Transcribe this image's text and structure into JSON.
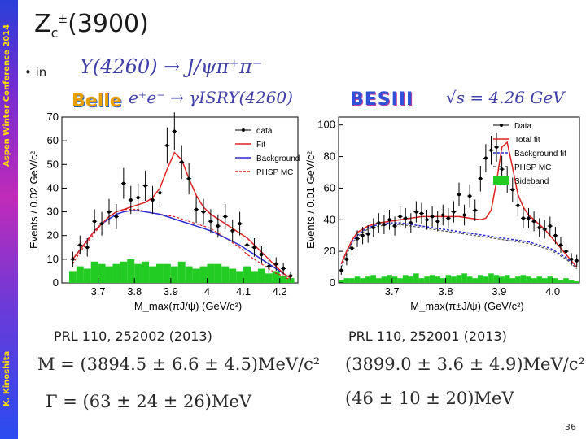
{
  "sidebar": {
    "conference": "Aspen Winter Conference 2014",
    "author": "K. Kinoshita"
  },
  "slide": {
    "title_main": "Z",
    "title_sub": "c",
    "title_sup": "±",
    "title_rest": "(3900)",
    "bullet": "•  in",
    "page_number": "36"
  },
  "process": {
    "line1": "Y(4260) → J/ψπ⁺π⁻",
    "line2": "e⁺e⁻ → γISRY(4260)",
    "sqrt_s": "√s = 4.26 GeV"
  },
  "experiments": {
    "left": "Belle",
    "right": "BESIII"
  },
  "references": {
    "left": "PRL 110, 252002 (2013)",
    "right": "PRL 110, 252001 (2013)"
  },
  "results": {
    "left_mass": "M = (3894.5 ± 6.6 ± 4.5)MeV/c²",
    "left_width": "Γ = (63 ± 24 ± 26)MeV",
    "right_mass": "(3899.0 ± 3.6 ± 4.9)MeV/c²",
    "right_width": "(46 ± 10 ± 20)MeV"
  },
  "chart_data": [
    {
      "type": "bar",
      "experiment": "Belle",
      "xlabel": "M_max(πJ/ψ) (GeV/c²)",
      "ylabel": "Events / 0.02 GeV/c²",
      "xlim": [
        3.6,
        4.25
      ],
      "ylim": [
        0,
        70
      ],
      "xticks": [
        3.7,
        3.8,
        3.9,
        4.0,
        4.1,
        4.2
      ],
      "xtick_labels": [
        "3.7",
        "3.8",
        "3.9",
        "4",
        "4.1",
        "4.2"
      ],
      "yticks": [
        0,
        10,
        20,
        30,
        40,
        50,
        60,
        70
      ],
      "ytick_labels": [
        "0",
        "10",
        "20",
        "30",
        "40",
        "50",
        "60",
        "70"
      ],
      "legend": [
        "data",
        "Fit",
        "Background",
        "PHSP MC"
      ],
      "x": [
        3.63,
        3.65,
        3.67,
        3.69,
        3.71,
        3.73,
        3.75,
        3.77,
        3.79,
        3.81,
        3.83,
        3.85,
        3.87,
        3.89,
        3.91,
        3.93,
        3.95,
        3.97,
        3.99,
        4.01,
        4.03,
        4.05,
        4.07,
        4.09,
        4.11,
        4.13,
        4.15,
        4.17,
        4.19,
        4.21,
        4.23
      ],
      "data": [
        10,
        16,
        15,
        26,
        25,
        30,
        28,
        42,
        35,
        36,
        41,
        35,
        38,
        58,
        64,
        51,
        44,
        31,
        30,
        26,
        24,
        28,
        22,
        25,
        16,
        15,
        12,
        7,
        8,
        6,
        3
      ],
      "fit": [
        10,
        14,
        18,
        22,
        25,
        28,
        30,
        31,
        32,
        33,
        34,
        36,
        40,
        48,
        55,
        52,
        44,
        37,
        32,
        29,
        27,
        25,
        23,
        21,
        19,
        16,
        13,
        10,
        7,
        4,
        2
      ],
      "background": [
        10,
        14,
        18,
        22,
        25,
        27,
        29,
        30,
        30.5,
        30.5,
        30,
        29.5,
        29,
        28,
        27,
        26,
        25,
        24,
        23,
        22,
        20.5,
        19,
        17.5,
        16,
        14,
        12,
        10,
        8,
        6,
        4,
        2
      ],
      "phsp": [
        8,
        13,
        17,
        21,
        25,
        28,
        30,
        31,
        31,
        31,
        30,
        29.5,
        29,
        28.5,
        28,
        27,
        26,
        25,
        24,
        23,
        21,
        19,
        17,
        15,
        12,
        10,
        8,
        6,
        4,
        3,
        1
      ],
      "sideband": [
        5,
        7,
        6,
        9,
        8,
        7,
        8,
        9,
        10,
        8,
        9,
        7,
        8,
        8,
        7,
        9,
        7,
        6,
        7,
        8,
        8,
        7,
        6,
        5,
        7,
        5,
        6,
        4,
        5,
        3,
        2
      ]
    },
    {
      "type": "bar",
      "experiment": "BESIII",
      "xlabel": "M_max(π±J/ψ) (GeV/c²)",
      "ylabel": "Events / 0.01 GeV/c²",
      "xlim": [
        3.6,
        4.05
      ],
      "ylim": [
        0,
        105
      ],
      "xticks": [
        3.7,
        3.8,
        3.9,
        4.0
      ],
      "xtick_labels": [
        "3.7",
        "3.8",
        "3.9",
        "4.0"
      ],
      "yticks": [
        0,
        20,
        40,
        60,
        80,
        100
      ],
      "ytick_labels": [
        "0",
        "20",
        "40",
        "60",
        "80",
        "100"
      ],
      "legend": [
        "Data",
        "Total fit",
        "Background fit",
        "PHSP MC",
        "Sideband"
      ],
      "x": [
        3.605,
        3.615,
        3.625,
        3.635,
        3.645,
        3.655,
        3.665,
        3.675,
        3.685,
        3.695,
        3.705,
        3.715,
        3.725,
        3.735,
        3.745,
        3.755,
        3.765,
        3.775,
        3.785,
        3.795,
        3.805,
        3.815,
        3.825,
        3.835,
        3.845,
        3.855,
        3.865,
        3.875,
        3.885,
        3.895,
        3.905,
        3.915,
        3.925,
        3.935,
        3.945,
        3.955,
        3.965,
        3.975,
        3.985,
        3.995,
        4.005,
        4.015,
        4.025,
        4.035,
        4.045
      ],
      "data": [
        8,
        15,
        22,
        28,
        30,
        31,
        35,
        38,
        37,
        40,
        36,
        42,
        41,
        38,
        45,
        44,
        40,
        42,
        39,
        43,
        41,
        45,
        56,
        43,
        55,
        46,
        66,
        79,
        84,
        86,
        72,
        65,
        59,
        49,
        41,
        41,
        39,
        35,
        34,
        36,
        30,
        24,
        20,
        15,
        14
      ],
      "fit": [
        12,
        20,
        27,
        32,
        34,
        36,
        37,
        38,
        38.5,
        39,
        39.5,
        40,
        40.5,
        41,
        41.5,
        42,
        42,
        42,
        42,
        42,
        42,
        42,
        42,
        41.5,
        41,
        40.5,
        40,
        41,
        46,
        64,
        86,
        89,
        73,
        56,
        48,
        43,
        40,
        37,
        34,
        30,
        26,
        22,
        18,
        14,
        10
      ],
      "background": [
        12,
        20,
        26,
        30,
        33,
        35,
        36,
        37,
        37.5,
        38,
        38,
        38,
        37.5,
        37,
        36.5,
        36,
        35.5,
        35,
        34.5,
        34,
        33.5,
        33,
        32.5,
        32,
        31.5,
        31,
        30.5,
        30,
        29.5,
        29,
        28.5,
        28,
        27.5,
        27,
        26.5,
        26,
        25,
        24,
        23,
        22,
        20,
        18,
        16,
        13,
        10
      ],
      "phsp": [
        10,
        18,
        25,
        29,
        32,
        34,
        35,
        36,
        36.5,
        37,
        37,
        37,
        36.5,
        36,
        35.5,
        35,
        34.5,
        34,
        33.5,
        33,
        32.5,
        32,
        31.5,
        31,
        30.5,
        30,
        29.5,
        29,
        28.5,
        28,
        27.5,
        27,
        26.5,
        26,
        25.5,
        25,
        24,
        23,
        22,
        21,
        19,
        17,
        15,
        12,
        9
      ],
      "sideband": [
        2,
        3,
        3,
        4,
        3,
        4,
        5,
        3,
        4,
        5,
        4,
        3,
        5,
        4,
        6,
        3,
        4,
        5,
        4,
        3,
        5,
        4,
        5,
        6,
        4,
        3,
        5,
        4,
        6,
        5,
        4,
        5,
        3,
        4,
        5,
        4,
        3,
        4,
        3,
        4,
        3,
        2,
        3,
        2,
        1
      ]
    }
  ]
}
